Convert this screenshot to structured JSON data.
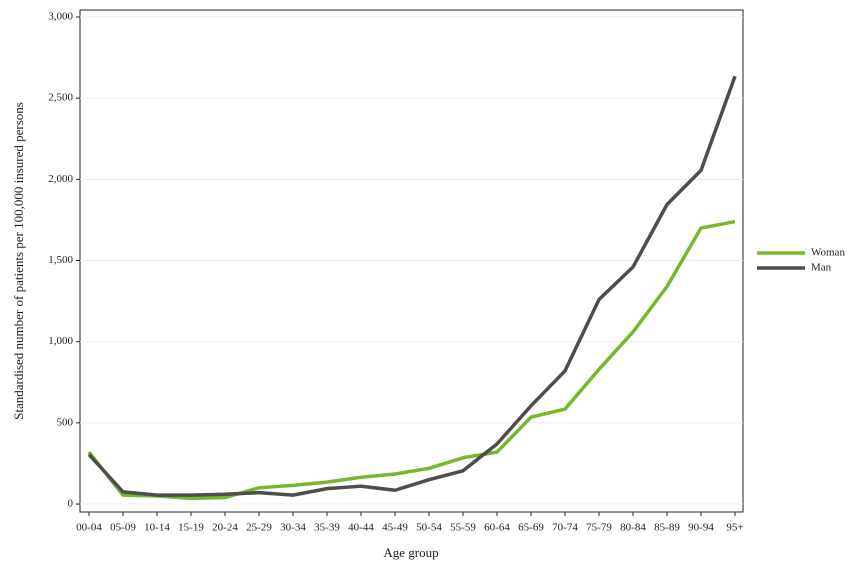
{
  "chart_data": {
    "type": "line",
    "x_label": "Age group",
    "y_label": "Standardised number of patients per 100,000 insured persons",
    "categories": [
      "00-04",
      "05-09",
      "10-14",
      "15-19",
      "20-24",
      "25-29",
      "30-34",
      "35-39",
      "40-44",
      "45-49",
      "50-54",
      "55-59",
      "60-64",
      "65-69",
      "70-74",
      "75-79",
      "80-84",
      "85-89",
      "90-94",
      "95+"
    ],
    "series": [
      {
        "name": "Woman",
        "color": "#76b82a",
        "values": [
          320,
          55,
          50,
          35,
          40,
          100,
          115,
          135,
          165,
          185,
          220,
          285,
          320,
          535,
          585,
          830,
          1060,
          1340,
          1700,
          1740
        ]
      },
      {
        "name": "Man",
        "color": "#4d4d4d",
        "values": [
          305,
          75,
          55,
          55,
          60,
          70,
          55,
          95,
          110,
          85,
          150,
          205,
          370,
          605,
          820,
          1260,
          1460,
          1845,
          2055,
          2635
        ]
      }
    ],
    "ylim": [
      -49,
      3043
    ],
    "yticks": [
      0,
      500,
      {
        "value": 1000,
        "label": "1,000"
      },
      {
        "value": 1500,
        "label": "1,500"
      },
      {
        "value": 2000,
        "label": "2,000"
      },
      {
        "value": 2500,
        "label": "2,500"
      },
      {
        "value": 3000,
        "label": "3,000"
      }
    ],
    "grid": true,
    "legend": "right"
  }
}
